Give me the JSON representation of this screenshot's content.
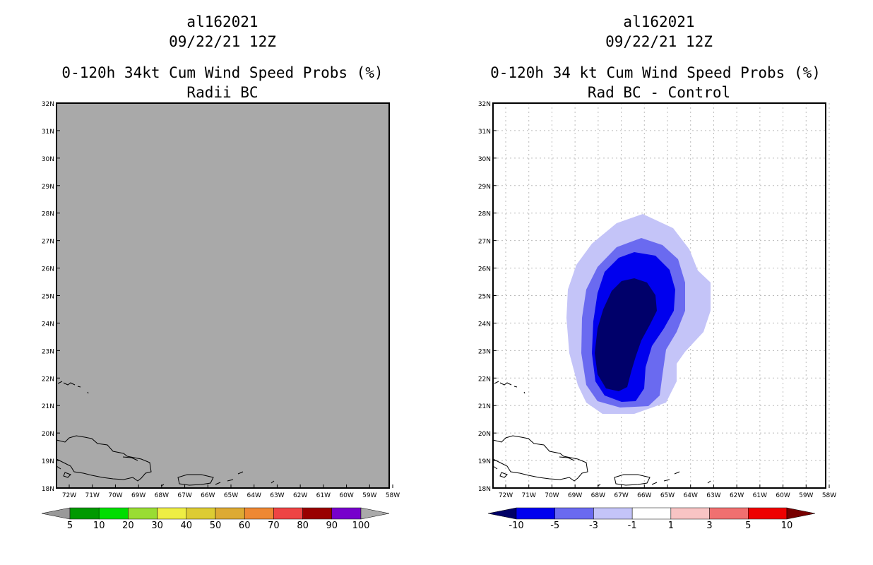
{
  "left_panel": {
    "storm_id": "al162021",
    "datetime": "09/22/21 12Z",
    "product": "0-120h 34kt Cum Wind Speed Probs (%)",
    "subtitle": "Radii BC",
    "colorbar": {
      "labels": [
        "5",
        "10",
        "20",
        "30",
        "40",
        "50",
        "60",
        "70",
        "80",
        "90",
        "100"
      ],
      "colors": [
        "#009900",
        "#00dd00",
        "#99dd33",
        "#eeee44",
        "#ddcc33",
        "#ddaa33",
        "#ee8833",
        "#ee4444",
        "#990000",
        "#7700cc"
      ],
      "under_color": "#999999",
      "over_color": "#aaaaaa"
    },
    "field_color": "#a9a9a9"
  },
  "right_panel": {
    "storm_id": "al162021",
    "datetime": "09/22/21 12Z",
    "product": "0-120h 34 kt Cum Wind Speed Probs (%)",
    "subtitle": "Rad BC - Control",
    "colorbar": {
      "labels": [
        "-10",
        "-5",
        "-3",
        "-1",
        "1",
        "3",
        "5",
        "10"
      ],
      "colors": [
        "#0000ee",
        "#6a6af0",
        "#c4c4f8",
        "#ffffff",
        "#f8c4c4",
        "#f07070",
        "#ee0000"
      ],
      "under_color": "#000066",
      "over_color": "#770000"
    },
    "contour_colors": [
      "#c4c4f8",
      "#6a6af0",
      "#0000ee",
      "#00006a"
    ]
  },
  "axes": {
    "lat_labels": [
      "18N",
      "19N",
      "20N",
      "21N",
      "22N",
      "23N",
      "24N",
      "25N",
      "26N",
      "27N",
      "28N",
      "29N",
      "30N",
      "31N",
      "32N"
    ],
    "lon_labels": [
      "72W",
      "71W",
      "70W",
      "69W",
      "68W",
      "67W",
      "66W",
      "65W",
      "64W",
      "63W",
      "62W",
      "61W",
      "60W",
      "59W",
      "58W"
    ]
  }
}
